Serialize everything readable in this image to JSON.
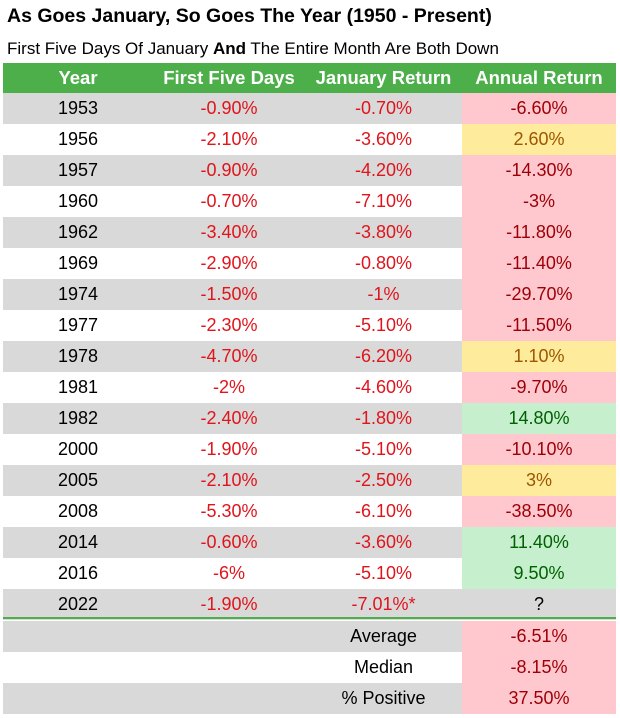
{
  "title": "As Goes January, So Goes The Year (1950 - Present)",
  "subtitle": {
    "part1": "First Five Days Of January ",
    "bold": "And",
    "part2": " The Entire Month Are Both Down"
  },
  "colors": {
    "header_bg": "#4caf4a",
    "negative_text": "#e0141b",
    "red_fill": "#ffc7ce",
    "yellow_fill": "#ffeb9c",
    "green_fill": "#c6efce"
  },
  "chart_data": {
    "type": "table",
    "columns": [
      "Year",
      "First Five Days",
      "January Return",
      "Annual Return"
    ],
    "rows": [
      {
        "year": "1953",
        "first_five": "-0.90%",
        "january": "-0.70%",
        "annual": "-6.60%",
        "annual_color": "red"
      },
      {
        "year": "1956",
        "first_five": "-2.10%",
        "january": "-3.60%",
        "annual": "2.60%",
        "annual_color": "yel"
      },
      {
        "year": "1957",
        "first_five": "-0.90%",
        "january": "-4.20%",
        "annual": "-14.30%",
        "annual_color": "red"
      },
      {
        "year": "1960",
        "first_five": "-0.70%",
        "january": "-7.10%",
        "annual": "-3%",
        "annual_color": "red"
      },
      {
        "year": "1962",
        "first_five": "-3.40%",
        "january": "-3.80%",
        "annual": "-11.80%",
        "annual_color": "red"
      },
      {
        "year": "1969",
        "first_five": "-2.90%",
        "january": "-0.80%",
        "annual": "-11.40%",
        "annual_color": "red"
      },
      {
        "year": "1974",
        "first_five": "-1.50%",
        "january": "-1%",
        "annual": "-29.70%",
        "annual_color": "red"
      },
      {
        "year": "1977",
        "first_five": "-2.30%",
        "january": "-5.10%",
        "annual": "-11.50%",
        "annual_color": "red"
      },
      {
        "year": "1978",
        "first_five": "-4.70%",
        "january": "-6.20%",
        "annual": "1.10%",
        "annual_color": "yel"
      },
      {
        "year": "1981",
        "first_five": "-2%",
        "january": "-4.60%",
        "annual": "-9.70%",
        "annual_color": "red"
      },
      {
        "year": "1982",
        "first_five": "-2.40%",
        "january": "-1.80%",
        "annual": "14.80%",
        "annual_color": "grn"
      },
      {
        "year": "2000",
        "first_five": "-1.90%",
        "january": "-5.10%",
        "annual": "-10.10%",
        "annual_color": "red"
      },
      {
        "year": "2005",
        "first_five": "-2.10%",
        "january": "-2.50%",
        "annual": "3%",
        "annual_color": "yel"
      },
      {
        "year": "2008",
        "first_five": "-5.30%",
        "january": "-6.10%",
        "annual": "-38.50%",
        "annual_color": "red"
      },
      {
        "year": "2014",
        "first_five": "-0.60%",
        "january": "-3.60%",
        "annual": "11.40%",
        "annual_color": "grn"
      },
      {
        "year": "2016",
        "first_five": "-6%",
        "january": "-5.10%",
        "annual": "9.50%",
        "annual_color": "grn"
      },
      {
        "year": "2022",
        "first_five": "-1.90%",
        "january": "-7.01%*",
        "annual": "?",
        "annual_color": "none"
      }
    ],
    "summary": [
      {
        "label": "Average",
        "value": "-6.51%"
      },
      {
        "label": "Median",
        "value": "-8.15%"
      },
      {
        "label": "% Positive",
        "value": "37.50%"
      }
    ]
  }
}
